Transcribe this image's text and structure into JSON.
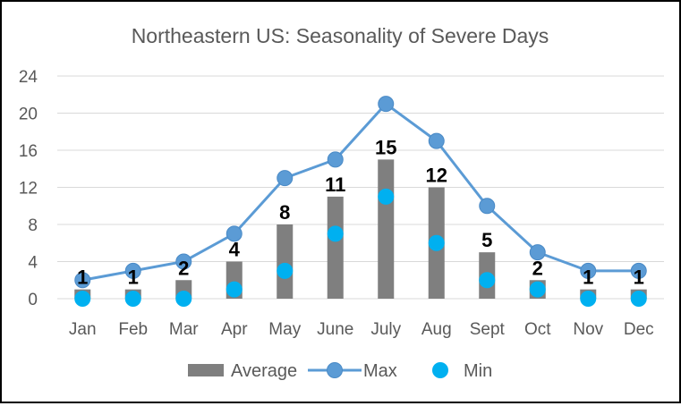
{
  "chart_data": {
    "type": "bar",
    "title": "Northeastern US: Seasonality of Severe Days",
    "categories": [
      "Jan",
      "Feb",
      "Mar",
      "Apr",
      "May",
      "June",
      "July",
      "Aug",
      "Sept",
      "Oct",
      "Nov",
      "Dec"
    ],
    "series": [
      {
        "name": "Average",
        "type": "bar",
        "values": [
          1,
          1,
          2,
          4,
          8,
          11,
          15,
          12,
          5,
          2,
          1,
          1
        ]
      },
      {
        "name": "Max",
        "type": "line",
        "values": [
          2,
          3,
          4,
          7,
          13,
          15,
          21,
          17,
          10,
          5,
          3,
          3
        ]
      },
      {
        "name": "Min",
        "type": "scatter",
        "values": [
          0,
          0,
          0,
          1,
          3,
          7,
          11,
          6,
          2,
          1,
          0,
          0
        ]
      }
    ],
    "data_labels": [
      "1",
      "1",
      "2",
      "4",
      "8",
      "11",
      "15",
      "12",
      "5",
      "2",
      "1",
      "1"
    ],
    "ylim": [
      0,
      24
    ],
    "yticks": [
      0,
      4,
      8,
      12,
      16,
      20,
      24
    ],
    "grid": true,
    "legend_position": "bottom",
    "colors": {
      "Average": "#7f7f7f",
      "Max": "#5b9bd5",
      "Min": "#00b0f0",
      "grid": "#d9d9d9",
      "text": "#595959"
    }
  }
}
